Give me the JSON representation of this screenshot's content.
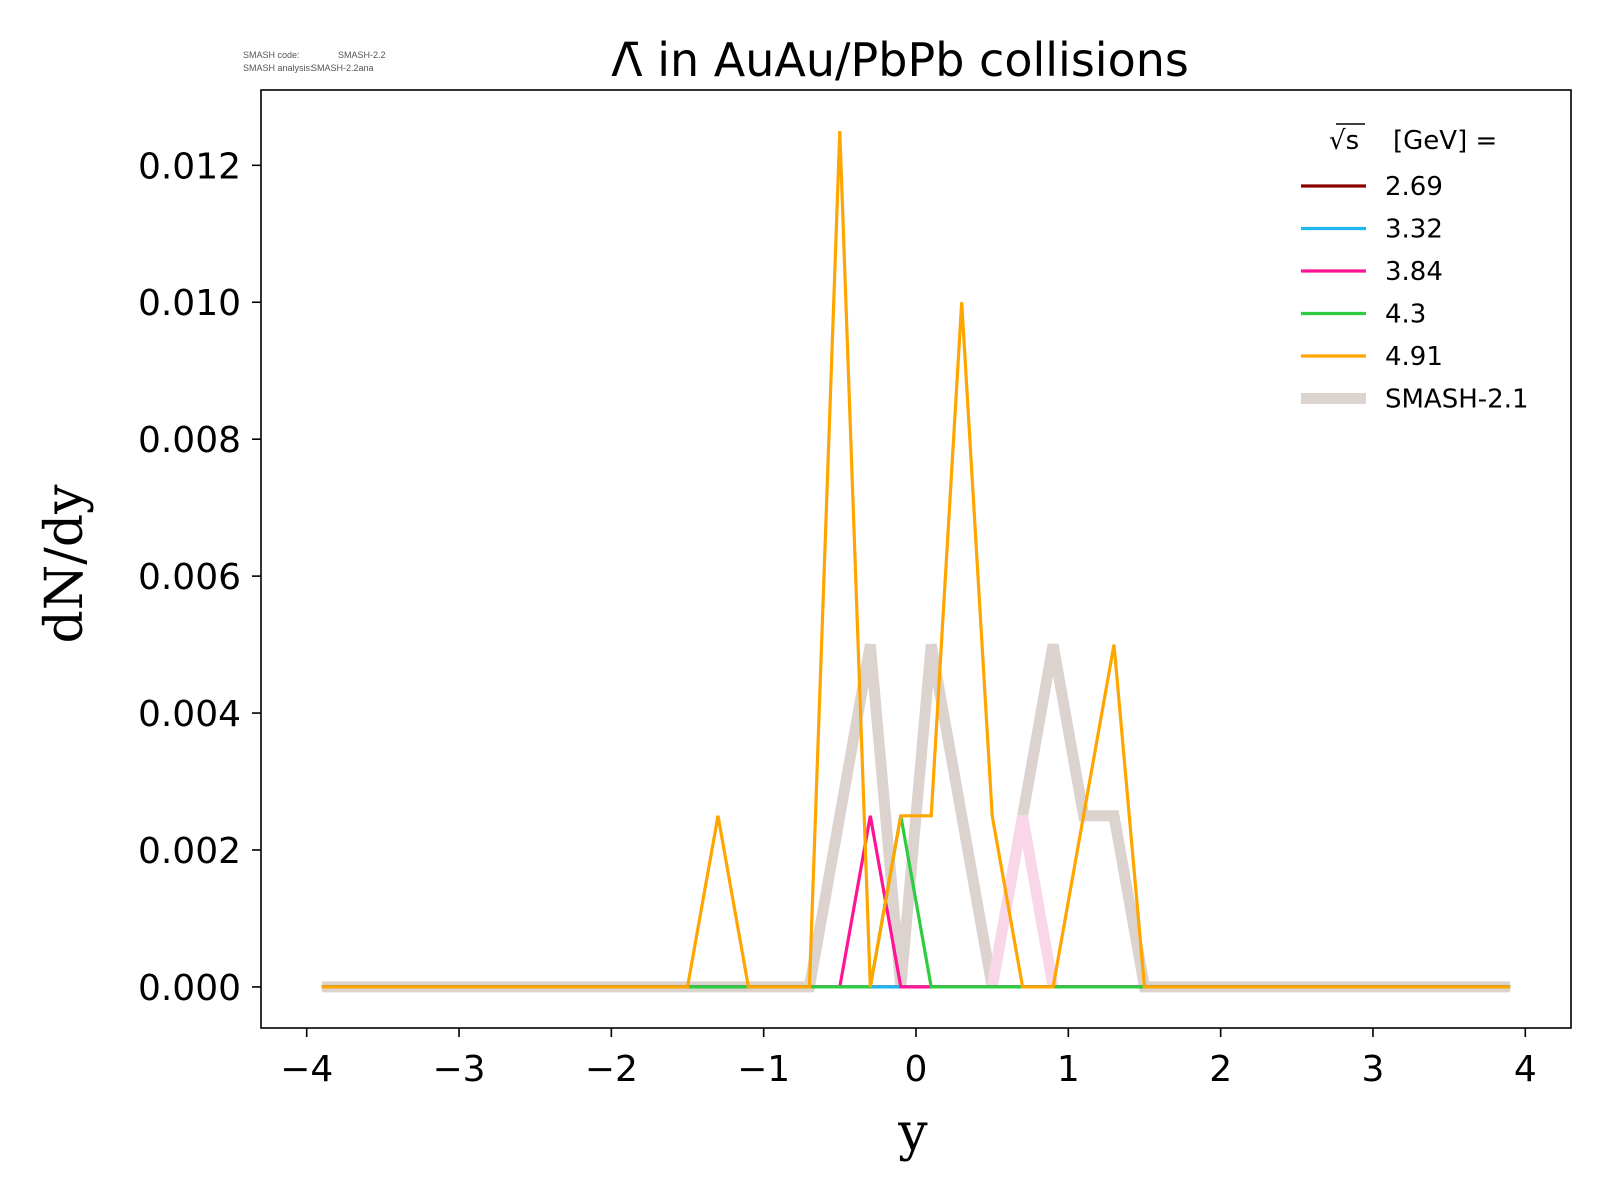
{
  "meta": {
    "code_label": "SMASH code:",
    "code_value": "SMASH-2.2",
    "analysis_label": "SMASH analysis:",
    "analysis_value": "SMASH-2.2ana"
  },
  "chart_data": {
    "type": "line",
    "title": "Λ̄ in AuAu/PbPb collisions",
    "xlabel": "y",
    "ylabel": "dN/dy",
    "xlim": [
      -4.3,
      4.3
    ],
    "ylim": [
      -0.0006,
      0.0131
    ],
    "xticks": [
      -4,
      -3,
      -2,
      -1,
      0,
      1,
      2,
      3,
      4
    ],
    "xtick_labels": [
      "−4",
      "−3",
      "−2",
      "−1",
      "0",
      "1",
      "2",
      "3",
      "4"
    ],
    "yticks": [
      0.0,
      0.002,
      0.004,
      0.006,
      0.008,
      0.01,
      0.012
    ],
    "ytick_labels": [
      "0.000",
      "0.002",
      "0.004",
      "0.006",
      "0.008",
      "0.010",
      "0.012"
    ],
    "grid": false,
    "legend": {
      "title_symbol": "√s",
      "title_text": "[GeV] =",
      "placement": "top-right"
    },
    "series": [
      {
        "name": "SMASH-2.1",
        "color": "#dcd3cf",
        "style": "thick",
        "points": [
          [
            -3.9,
            0
          ],
          [
            -0.7,
            0
          ],
          [
            -0.3,
            0.005
          ],
          [
            -0.1,
            0
          ],
          [
            0.1,
            0.005
          ],
          [
            0.5,
            0
          ],
          [
            0.9,
            0.005
          ],
          [
            1.1,
            0.0025
          ],
          [
            1.3,
            0.0025
          ],
          [
            1.5,
            0
          ],
          [
            3.9,
            0
          ]
        ]
      },
      {
        "name": "",
        "color": "#fad7e8",
        "style": "thick",
        "points": [
          [
            0.5,
            0
          ],
          [
            0.7,
            0.0025
          ],
          [
            0.9,
            0
          ]
        ]
      },
      {
        "name": "2.69",
        "color": "#8b0000",
        "style": "thin",
        "points": [
          [
            -3.9,
            0
          ],
          [
            3.9,
            0
          ]
        ]
      },
      {
        "name": "3.32",
        "color": "#1fb6ef",
        "style": "thin",
        "points": [
          [
            -3.9,
            0
          ],
          [
            3.9,
            0
          ]
        ]
      },
      {
        "name": "3.84",
        "color": "#ff1493",
        "style": "thin",
        "points": [
          [
            -3.9,
            0
          ],
          [
            -0.5,
            0
          ],
          [
            -0.3,
            0.0025
          ],
          [
            -0.1,
            0
          ],
          [
            3.9,
            0
          ]
        ]
      },
      {
        "name": "4.3",
        "color": "#2ecc40",
        "style": "thin",
        "points": [
          [
            -3.9,
            0
          ],
          [
            -0.3,
            0
          ],
          [
            -0.1,
            0.0025
          ],
          [
            0.1,
            0
          ],
          [
            3.9,
            0
          ]
        ]
      },
      {
        "name": "4.91",
        "color": "#ffa500",
        "style": "thin",
        "points": [
          [
            -3.9,
            0
          ],
          [
            -1.5,
            0
          ],
          [
            -1.3,
            0.0025
          ],
          [
            -1.1,
            0
          ],
          [
            -0.7,
            0
          ],
          [
            -0.5,
            0.0125
          ],
          [
            -0.3,
            0
          ],
          [
            -0.1,
            0.0025
          ],
          [
            0.1,
            0.0025
          ],
          [
            0.3,
            0.01
          ],
          [
            0.5,
            0.0025
          ],
          [
            0.7,
            0
          ],
          [
            0.9,
            0
          ],
          [
            1.3,
            0.005
          ],
          [
            1.5,
            0
          ],
          [
            3.9,
            0
          ]
        ]
      }
    ],
    "legend_order": [
      "2.69",
      "3.32",
      "3.84",
      "4.3",
      "4.91",
      "SMASH-2.1"
    ]
  }
}
